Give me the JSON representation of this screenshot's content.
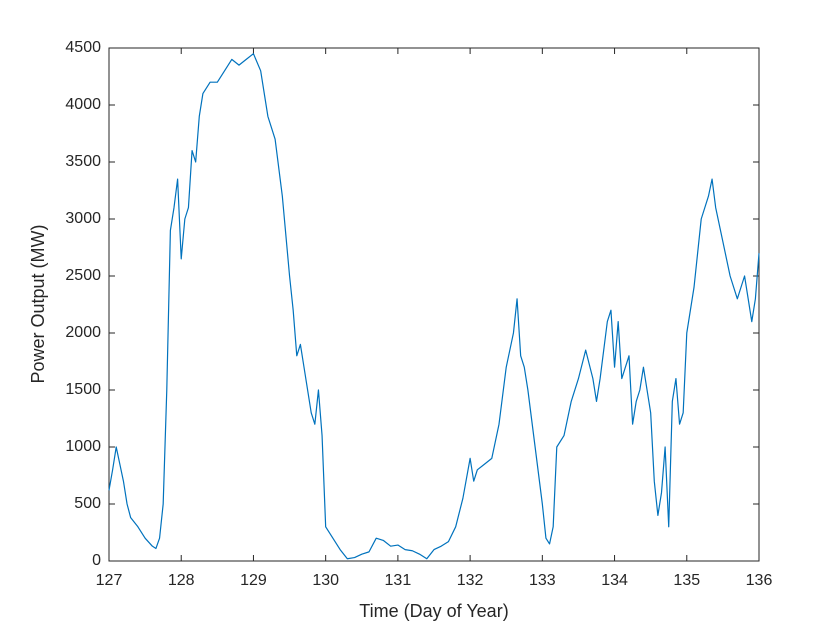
{
  "chart_data": {
    "type": "line",
    "xlabel": "Time (Day of Year)",
    "ylabel": "Power Output (MW)",
    "color": "#0072BD",
    "x": [
      127.0,
      127.05,
      127.1,
      127.15,
      127.2,
      127.25,
      127.3,
      127.4,
      127.5,
      127.6,
      127.65,
      127.7,
      127.75,
      127.8,
      127.85,
      127.9,
      127.95,
      128.0,
      128.05,
      128.1,
      128.15,
      128.2,
      128.25,
      128.3,
      128.4,
      128.5,
      128.6,
      128.7,
      128.8,
      128.9,
      129.0,
      129.1,
      129.15,
      129.2,
      129.3,
      129.4,
      129.5,
      129.55,
      129.6,
      129.65,
      129.7,
      129.8,
      129.85,
      129.9,
      129.95,
      130.0,
      130.1,
      130.2,
      130.3,
      130.4,
      130.5,
      130.6,
      130.7,
      130.8,
      130.9,
      131.0,
      131.1,
      131.2,
      131.3,
      131.4,
      131.5,
      131.6,
      131.7,
      131.8,
      131.9,
      132.0,
      132.05,
      132.1,
      132.2,
      132.3,
      132.4,
      132.5,
      132.6,
      132.65,
      132.7,
      132.75,
      132.8,
      132.9,
      133.0,
      133.05,
      133.1,
      133.15,
      133.2,
      133.3,
      133.4,
      133.5,
      133.6,
      133.7,
      133.75,
      133.8,
      133.9,
      133.95,
      134.0,
      134.05,
      134.1,
      134.2,
      134.25,
      134.3,
      134.35,
      134.4,
      134.5,
      134.55,
      134.6,
      134.65,
      134.7,
      134.75,
      134.8,
      134.85,
      134.9,
      134.95,
      135.0,
      135.1,
      135.2,
      135.3,
      135.35,
      135.4,
      135.5,
      135.6,
      135.7,
      135.8,
      135.9,
      135.95,
      136.0
    ],
    "values": [
      620,
      800,
      1000,
      850,
      700,
      500,
      380,
      300,
      200,
      130,
      110,
      200,
      500,
      1500,
      2900,
      3100,
      3350,
      2650,
      3000,
      3100,
      3600,
      3500,
      3900,
      4100,
      4200,
      4200,
      4300,
      4400,
      4350,
      4400,
      4450,
      4300,
      4100,
      3900,
      3700,
      3200,
      2500,
      2200,
      1800,
      1900,
      1700,
      1300,
      1200,
      1500,
      1100,
      300,
      200,
      100,
      20,
      30,
      60,
      80,
      200,
      180,
      130,
      140,
      100,
      90,
      60,
      20,
      100,
      130,
      170,
      300,
      550,
      900,
      700,
      800,
      850,
      900,
      1200,
      1700,
      2000,
      2300,
      1800,
      1700,
      1500,
      1000,
      500,
      200,
      150,
      300,
      1000,
      1100,
      1400,
      1600,
      1850,
      1600,
      1400,
      1600,
      2100,
      2200,
      1700,
      2100,
      1600,
      1800,
      1200,
      1400,
      1500,
      1700,
      1300,
      700,
      400,
      600,
      1000,
      300,
      1400,
      1600,
      1200,
      1300,
      2000,
      2400,
      3000,
      3200,
      3350,
      3100,
      2800,
      2500,
      2300,
      2500,
      2100,
      2300,
      2700
    ],
    "xlim": [
      127,
      136
    ],
    "xticks": [
      127,
      128,
      129,
      130,
      131,
      132,
      133,
      134,
      135,
      136
    ],
    "ylim": [
      0,
      4500
    ],
    "yticks": [
      0,
      500,
      1000,
      1500,
      2000,
      2500,
      3000,
      3500,
      4000,
      4500
    ]
  }
}
